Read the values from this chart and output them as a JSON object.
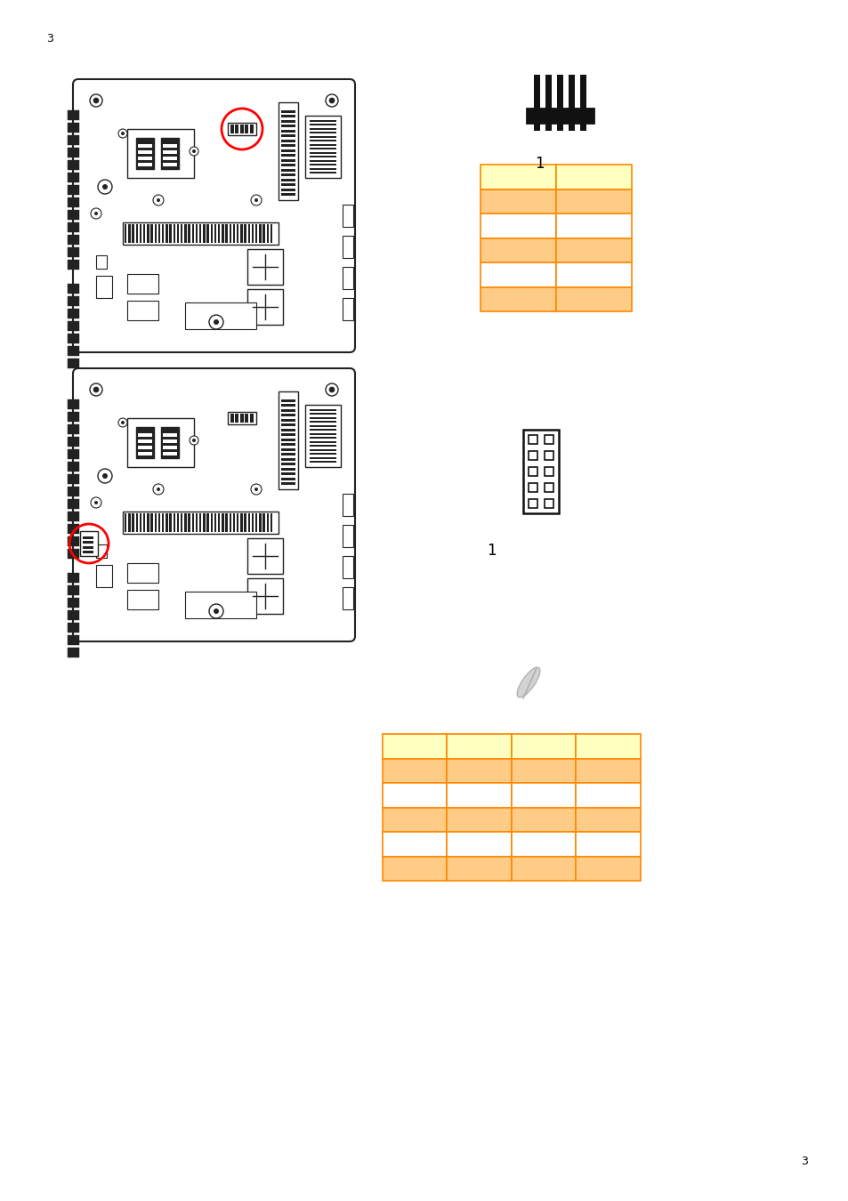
{
  "page_num_top_left": "3",
  "page_num_bottom_right": "3",
  "connector1_label": "1",
  "connector2_label": "1",
  "table1_colors": [
    [
      "#FFFFC0",
      "#FFFFC0"
    ],
    [
      "#FFCC88",
      "#FFCC88"
    ],
    [
      "#FFFFFF",
      "#FFFFFF"
    ],
    [
      "#FFCC88",
      "#FFCC88"
    ],
    [
      "#FFFFFF",
      "#FFFFFF"
    ],
    [
      "#FFCC88",
      "#FFCC88"
    ]
  ],
  "table1_border": "#FF8800",
  "table2_colors": [
    [
      "#FFFFC0",
      "#FFFFC0",
      "#FFFFC0",
      "#FFFFC0"
    ],
    [
      "#FFCC88",
      "#FFCC88",
      "#FFCC88",
      "#FFCC88"
    ],
    [
      "#FFFFFF",
      "#FFFFFF",
      "#FFFFFF",
      "#FFFFFF"
    ],
    [
      "#FFCC88",
      "#FFCC88",
      "#FFCC88",
      "#FFCC88"
    ],
    [
      "#FFFFFF",
      "#FFFFFF",
      "#FFFFFF",
      "#FFFFFF"
    ],
    [
      "#FFCC88",
      "#FFCC88",
      "#FFCC88",
      "#FFCC88"
    ]
  ],
  "table2_border": "#FF8800",
  "bg_color": "#FFFFFF",
  "pcb_edge": "#222222",
  "pcb_fill": "#FFFFFF",
  "connector_color": "#111111",
  "red_circle": "#FF0000",
  "feather_color": "#AAAAAA"
}
